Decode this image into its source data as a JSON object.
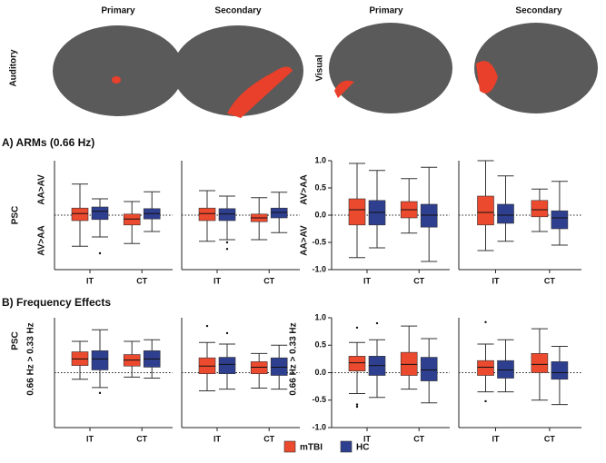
{
  "figure": {
    "headers": [
      "Primary",
      "Secondary",
      "Primary",
      "Secondary"
    ],
    "row_labels": [
      "Auditory",
      "Visual"
    ],
    "sections": [
      "A) ARMs (0.66 Hz)",
      "B) Frequency Effects"
    ],
    "groups": [
      {
        "name": "mTBI",
        "color": "#ec4a2e"
      },
      {
        "name": "HC",
        "color": "#2f3f8f"
      }
    ]
  },
  "chart_data": [
    {
      "type": "box",
      "ylabel": "PSC",
      "ylabel_upper": "AA>AV",
      "ylabel_lower": "AV>AA",
      "categories": [
        "IT",
        "CT"
      ],
      "ylim": [
        -1,
        1
      ],
      "series": [
        {
          "min": [
            -0.57,
            -0.52
          ],
          "q1": [
            -0.1,
            -0.18
          ],
          "median": [
            0.03,
            -0.07
          ],
          "q3": [
            0.13,
            0.02
          ],
          "max": [
            0.57,
            0.25
          ],
          "outliers": [
            [],
            []
          ]
        },
        {
          "min": [
            -0.4,
            -0.3
          ],
          "q1": [
            -0.08,
            -0.07
          ],
          "median": [
            0.07,
            0.03
          ],
          "q3": [
            0.15,
            0.12
          ],
          "max": [
            0.3,
            0.43
          ],
          "outliers": [
            [
              -0.7
            ],
            []
          ]
        }
      ]
    },
    {
      "type": "box",
      "categories": [
        "IT",
        "CT"
      ],
      "ylim": [
        -1,
        1
      ],
      "series": [
        {
          "min": [
            -0.48,
            -0.45
          ],
          "q1": [
            -0.1,
            -0.12
          ],
          "median": [
            0.03,
            -0.05
          ],
          "q3": [
            0.13,
            0.02
          ],
          "max": [
            0.45,
            0.32
          ],
          "outliers": [
            [],
            []
          ]
        },
        {
          "min": [
            -0.45,
            -0.32
          ],
          "q1": [
            -0.1,
            -0.05
          ],
          "median": [
            0.02,
            0.05
          ],
          "q3": [
            0.12,
            0.13
          ],
          "max": [
            0.35,
            0.42
          ],
          "outliers": [
            [
              -0.5,
              -0.62
            ],
            []
          ]
        }
      ]
    },
    {
      "type": "box",
      "ylabel_upper": "AV>AA",
      "ylabel_lower": "AA>AV",
      "categories": [
        "IT",
        "CT"
      ],
      "ylim": [
        -1,
        1
      ],
      "yticks": [
        {
          "value": 1,
          "label": "1.0"
        },
        0.5,
        {
          "value": 0,
          "label": "0.0"
        },
        -0.5,
        {
          "value": -1,
          "label": "-1.0"
        }
      ],
      "series": [
        {
          "min": [
            -0.78,
            -0.33
          ],
          "q1": [
            -0.18,
            -0.05
          ],
          "median": [
            0.1,
            0.1
          ],
          "q3": [
            0.3,
            0.25
          ],
          "max": [
            0.95,
            0.67
          ],
          "outliers": [
            [],
            []
          ]
        },
        {
          "min": [
            -0.6,
            -0.85
          ],
          "q1": [
            -0.18,
            -0.22
          ],
          "median": [
            0.05,
            0.0
          ],
          "q3": [
            0.27,
            0.2
          ],
          "max": [
            0.82,
            0.88
          ],
          "outliers": [
            [],
            []
          ]
        }
      ]
    },
    {
      "type": "box",
      "categories": [
        "IT",
        "CT"
      ],
      "ylim": [
        -1,
        1
      ],
      "series": [
        {
          "min": [
            -0.65,
            -0.3
          ],
          "q1": [
            -0.18,
            -0.03
          ],
          "median": [
            0.05,
            0.1
          ],
          "q3": [
            0.35,
            0.27
          ],
          "max": [
            1.0,
            0.48
          ],
          "outliers": [
            [],
            []
          ]
        },
        {
          "min": [
            -0.48,
            -0.55
          ],
          "q1": [
            -0.15,
            -0.25
          ],
          "median": [
            0.0,
            -0.05
          ],
          "q3": [
            0.2,
            0.08
          ],
          "max": [
            0.72,
            0.62
          ],
          "outliers": [
            [],
            []
          ]
        }
      ]
    },
    {
      "type": "box",
      "ylabel": "PSC",
      "ylabel_sub": "0.66 Hz > 0.33 Hz",
      "categories": [
        "IT",
        "CT"
      ],
      "ylim": [
        -1,
        1
      ],
      "series": [
        {
          "min": [
            -0.12,
            -0.08
          ],
          "q1": [
            0.13,
            0.12
          ],
          "median": [
            0.25,
            0.23
          ],
          "q3": [
            0.38,
            0.33
          ],
          "max": [
            0.57,
            0.57
          ],
          "outliers": [
            [],
            []
          ]
        },
        {
          "min": [
            -0.27,
            -0.1
          ],
          "q1": [
            0.05,
            0.1
          ],
          "median": [
            0.25,
            0.25
          ],
          "q3": [
            0.4,
            0.4
          ],
          "max": [
            0.78,
            0.6
          ],
          "outliers": [
            [
              -0.37
            ],
            []
          ]
        }
      ]
    },
    {
      "type": "box",
      "categories": [
        "IT",
        "CT"
      ],
      "ylim": [
        -1,
        1
      ],
      "series": [
        {
          "min": [
            -0.33,
            -0.28
          ],
          "q1": [
            -0.02,
            -0.02
          ],
          "median": [
            0.12,
            0.1
          ],
          "q3": [
            0.27,
            0.2
          ],
          "max": [
            0.55,
            0.35
          ],
          "outliers": [
            [
              0.85
            ],
            []
          ]
        },
        {
          "min": [
            -0.3,
            -0.3
          ],
          "q1": [
            -0.02,
            -0.05
          ],
          "median": [
            0.15,
            0.1
          ],
          "q3": [
            0.28,
            0.27
          ],
          "max": [
            0.52,
            0.5
          ],
          "outliers": [
            [
              0.72
            ],
            []
          ]
        }
      ]
    },
    {
      "type": "box",
      "ylabel_sub": "0.66 Hz > 0.33 Hz",
      "categories": [
        "IT",
        "CT"
      ],
      "ylim": [
        -1,
        1
      ],
      "yticks": [
        {
          "value": 1,
          "label": "1.0"
        },
        0.5,
        {
          "value": 0,
          "label": "0.0"
        },
        -0.5,
        {
          "value": -1,
          "label": "-1.0"
        }
      ],
      "series": [
        {
          "min": [
            -0.38,
            -0.3
          ],
          "q1": [
            0.03,
            -0.05
          ],
          "median": [
            0.18,
            0.15
          ],
          "q3": [
            0.3,
            0.37
          ],
          "max": [
            0.55,
            0.85
          ],
          "outliers": [
            [
              0.82,
              -0.58,
              -0.62
            ],
            []
          ]
        },
        {
          "min": [
            -0.45,
            -0.55
          ],
          "q1": [
            -0.05,
            -0.15
          ],
          "median": [
            0.13,
            0.05
          ],
          "q3": [
            0.3,
            0.28
          ],
          "max": [
            0.6,
            0.62
          ],
          "outliers": [
            [
              0.9
            ],
            []
          ]
        }
      ]
    },
    {
      "type": "box",
      "categories": [
        "IT",
        "CT"
      ],
      "ylim": [
        -1,
        1
      ],
      "series": [
        {
          "min": [
            -0.35,
            -0.5
          ],
          "q1": [
            -0.05,
            0.0
          ],
          "median": [
            0.1,
            0.15
          ],
          "q3": [
            0.22,
            0.35
          ],
          "max": [
            0.52,
            0.8
          ],
          "outliers": [
            [
              0.92,
              -0.52
            ],
            []
          ]
        },
        {
          "min": [
            -0.35,
            -0.58
          ],
          "q1": [
            -0.1,
            -0.12
          ],
          "median": [
            0.05,
            0.0
          ],
          "q3": [
            0.22,
            0.2
          ],
          "max": [
            0.6,
            0.48
          ],
          "outliers": [
            [],
            []
          ]
        }
      ]
    }
  ]
}
